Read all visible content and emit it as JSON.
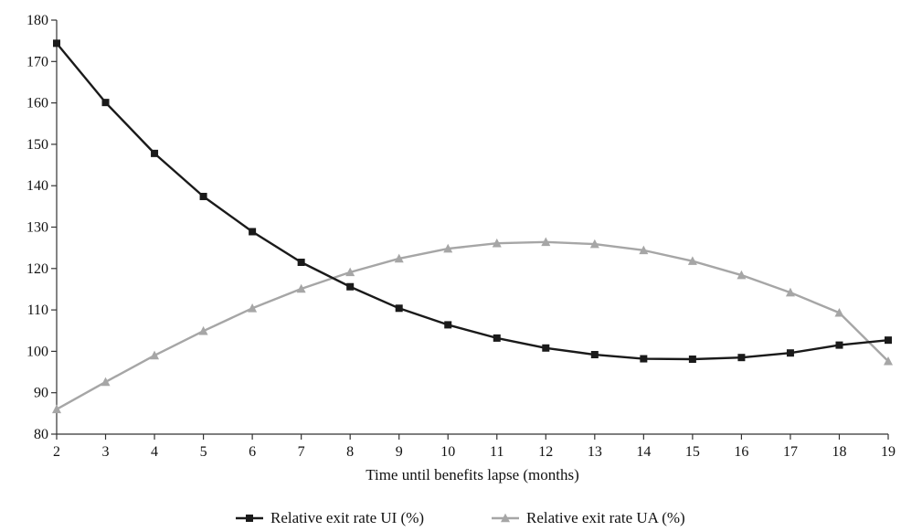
{
  "colors": {
    "series_ui": "#1a1a1a",
    "series_ua": "#a6a6a6",
    "axis": "#333333"
  },
  "chart_data": {
    "type": "line",
    "title": "",
    "xlabel": "Time until benefits lapse (months)",
    "ylabel": "",
    "x": [
      2,
      3,
      4,
      5,
      6,
      7,
      8,
      9,
      10,
      11,
      12,
      13,
      14,
      15,
      16,
      17,
      18,
      19
    ],
    "xlim": [
      2,
      19
    ],
    "ylim": [
      80,
      180
    ],
    "yticks": [
      80,
      90,
      100,
      110,
      120,
      130,
      140,
      150,
      160,
      170,
      180
    ],
    "grid": false,
    "legend_position": "bottom",
    "series": [
      {
        "name": "Relative exit rate UI (%)",
        "marker": "square",
        "color": "#1a1a1a",
        "values": [
          174.4,
          160.1,
          147.8,
          137.4,
          128.9,
          121.5,
          115.6,
          110.4,
          106.4,
          103.2,
          100.8,
          99.2,
          98.2,
          98.1,
          98.5,
          99.6,
          101.5,
          102.7
        ]
      },
      {
        "name": "Relative exit rate UA (%)",
        "marker": "triangle",
        "color": "#a6a6a6",
        "values": [
          86.0,
          92.6,
          99.0,
          104.9,
          110.4,
          115.1,
          119.1,
          122.4,
          124.8,
          126.1,
          126.4,
          125.9,
          124.4,
          121.8,
          118.4,
          114.2,
          109.3,
          97.6
        ]
      }
    ]
  }
}
